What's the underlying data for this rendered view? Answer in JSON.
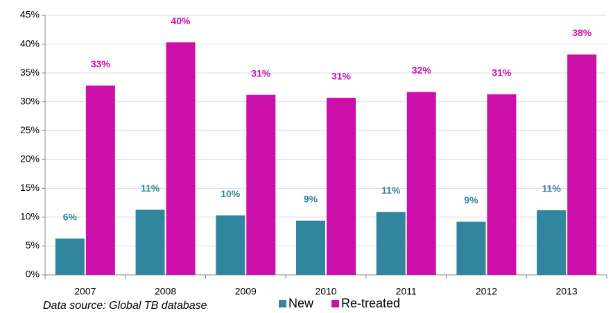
{
  "chart_data": {
    "type": "bar",
    "categories": [
      "2007",
      "2008",
      "2009",
      "2010",
      "2011",
      "2012",
      "2013"
    ],
    "series": [
      {
        "name": "New",
        "color": "#31859c",
        "values": [
          6.3,
          11.3,
          10.3,
          9.4,
          10.9,
          9.2,
          11.2
        ],
        "value_labels": [
          "6%",
          "11%",
          "10%",
          "9%",
          "11%",
          "9%",
          "11%"
        ]
      },
      {
        "name": "Re-treated",
        "color": "#cc0fa8",
        "values": [
          32.8,
          40.3,
          31.2,
          30.7,
          31.7,
          31.3,
          38.2
        ],
        "value_labels": [
          "33%",
          "40%",
          "31%",
          "31%",
          "32%",
          "31%",
          "38%"
        ]
      }
    ],
    "ylim": [
      0,
      45
    ],
    "yticks": [
      {
        "value": 0,
        "label": "0%"
      },
      {
        "value": 5,
        "label": "5%"
      },
      {
        "value": 10,
        "label": "10%"
      },
      {
        "value": 15,
        "label": "15%"
      },
      {
        "value": 20,
        "label": "20%"
      },
      {
        "value": 25,
        "label": "25%"
      },
      {
        "value": 30,
        "label": "30%"
      },
      {
        "value": 35,
        "label": "35%"
      },
      {
        "value": 40,
        "label": "40%"
      },
      {
        "value": 45,
        "label": "45%"
      }
    ],
    "grid": true,
    "annotation": "Data source: Global TB database"
  }
}
